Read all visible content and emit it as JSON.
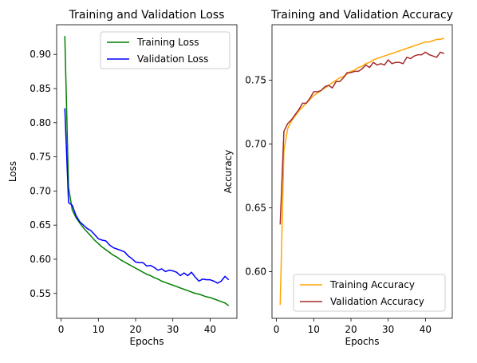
{
  "chart_data": [
    {
      "type": "line",
      "title": "Training and Validation Loss",
      "xlabel": "Epochs",
      "ylabel": "Loss",
      "xlim": [
        -1.2,
        47.2
      ],
      "ylim": [
        0.5135,
        0.9435
      ],
      "xticks": [
        0,
        10,
        20,
        30,
        40
      ],
      "yticks": [
        0.55,
        0.6,
        0.65,
        0.7,
        0.75,
        0.8,
        0.85,
        0.9
      ],
      "ytick_labels": [
        "0.55",
        "0.60",
        "0.65",
        "0.70",
        "0.75",
        "0.80",
        "0.85",
        "0.90"
      ],
      "legend_position": "upper right",
      "grid": false,
      "x": [
        1,
        2,
        3,
        4,
        5,
        6,
        7,
        8,
        9,
        10,
        11,
        12,
        13,
        14,
        15,
        16,
        17,
        18,
        19,
        20,
        21,
        22,
        23,
        24,
        25,
        26,
        27,
        28,
        29,
        30,
        31,
        32,
        33,
        34,
        35,
        36,
        37,
        38,
        39,
        40,
        41,
        42,
        43,
        44,
        45
      ],
      "series": [
        {
          "name": "Training Loss",
          "color": "#008000",
          "values": [
            0.927,
            0.705,
            0.672,
            0.661,
            0.653,
            0.646,
            0.64,
            0.634,
            0.628,
            0.623,
            0.618,
            0.614,
            0.61,
            0.606,
            0.603,
            0.599,
            0.596,
            0.593,
            0.59,
            0.587,
            0.584,
            0.581,
            0.578,
            0.576,
            0.573,
            0.571,
            0.568,
            0.566,
            0.564,
            0.562,
            0.56,
            0.558,
            0.556,
            0.554,
            0.552,
            0.55,
            0.549,
            0.547,
            0.545,
            0.544,
            0.542,
            0.54,
            0.538,
            0.536,
            0.532
          ]
        },
        {
          "name": "Validation Loss",
          "color": "#0000ff",
          "values": [
            0.821,
            0.683,
            0.679,
            0.664,
            0.655,
            0.65,
            0.645,
            0.642,
            0.636,
            0.63,
            0.628,
            0.627,
            0.621,
            0.617,
            0.615,
            0.613,
            0.611,
            0.605,
            0.601,
            0.596,
            0.595,
            0.595,
            0.59,
            0.591,
            0.588,
            0.584,
            0.586,
            0.582,
            0.584,
            0.583,
            0.581,
            0.576,
            0.58,
            0.576,
            0.581,
            0.574,
            0.568,
            0.571,
            0.57,
            0.57,
            0.568,
            0.565,
            0.568,
            0.575,
            0.57
          ]
        }
      ]
    },
    {
      "type": "line",
      "title": "Training and Validation Accuracy",
      "xlabel": "Epochs",
      "ylabel": "Accuracy",
      "xlim": [
        -1.2,
        47.2
      ],
      "ylim": [
        0.5635,
        0.7935
      ],
      "xticks": [
        0,
        10,
        20,
        30,
        40
      ],
      "yticks": [
        0.6,
        0.65,
        0.7,
        0.75
      ],
      "ytick_labels": [
        "0.60",
        "0.65",
        "0.70",
        "0.75"
      ],
      "legend_position": "lower right",
      "grid": false,
      "x": [
        1,
        2,
        3,
        4,
        5,
        6,
        7,
        8,
        9,
        10,
        11,
        12,
        13,
        14,
        15,
        16,
        17,
        18,
        19,
        20,
        21,
        22,
        23,
        24,
        25,
        26,
        27,
        28,
        29,
        30,
        31,
        32,
        33,
        34,
        35,
        36,
        37,
        38,
        39,
        40,
        41,
        42,
        43,
        44,
        45
      ],
      "series": [
        {
          "name": "Training Accuracy",
          "color": "#ffa500",
          "values": [
            0.574,
            0.695,
            0.712,
            0.718,
            0.722,
            0.726,
            0.729,
            0.732,
            0.735,
            0.738,
            0.74,
            0.742,
            0.744,
            0.746,
            0.748,
            0.75,
            0.752,
            0.753,
            0.755,
            0.757,
            0.758,
            0.76,
            0.761,
            0.763,
            0.764,
            0.766,
            0.767,
            0.768,
            0.769,
            0.77,
            0.771,
            0.772,
            0.773,
            0.774,
            0.775,
            0.776,
            0.777,
            0.778,
            0.779,
            0.78,
            0.78,
            0.781,
            0.782,
            0.782,
            0.783
          ]
        },
        {
          "name": "Validation Accuracy",
          "color": "#a52a2a",
          "values": [
            0.637,
            0.71,
            0.716,
            0.719,
            0.723,
            0.727,
            0.732,
            0.732,
            0.736,
            0.741,
            0.741,
            0.742,
            0.745,
            0.746,
            0.744,
            0.749,
            0.749,
            0.752,
            0.756,
            0.756,
            0.757,
            0.757,
            0.759,
            0.762,
            0.76,
            0.764,
            0.762,
            0.763,
            0.762,
            0.766,
            0.763,
            0.764,
            0.764,
            0.763,
            0.768,
            0.767,
            0.769,
            0.77,
            0.77,
            0.772,
            0.77,
            0.769,
            0.768,
            0.772,
            0.771
          ]
        }
      ]
    }
  ]
}
